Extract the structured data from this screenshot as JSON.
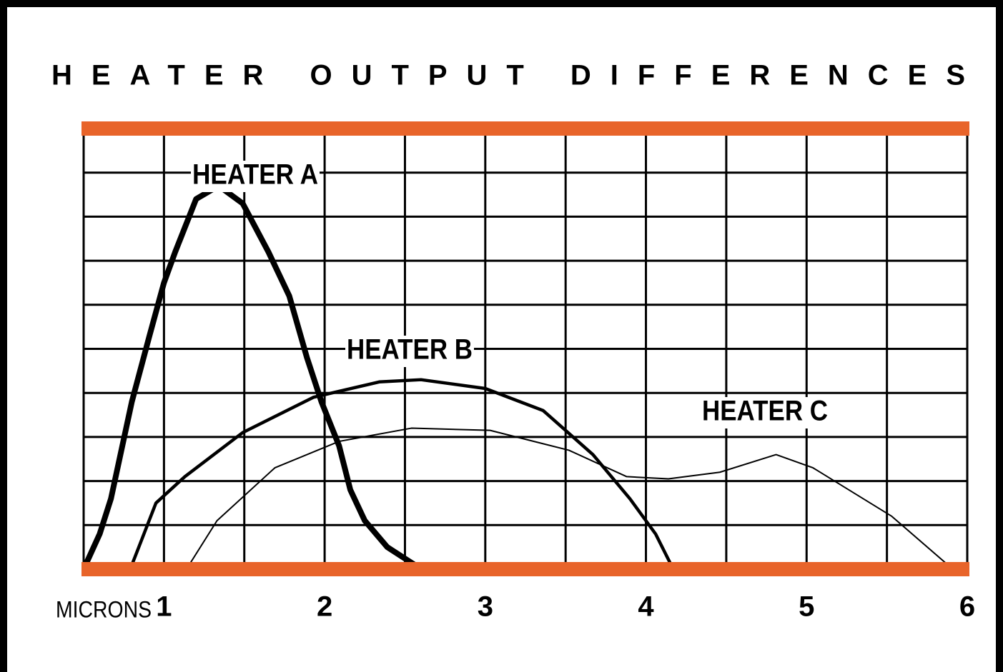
{
  "chart_data": {
    "type": "line",
    "title": "HEATER OUTPUT DIFFERENCES",
    "xlabel": "MICRONS",
    "xlim": [
      0.5,
      6
    ],
    "xticks": [
      1,
      2,
      3,
      4,
      5,
      6
    ],
    "xminor_ticks": [
      0.5,
      1.5,
      2.5,
      3.5,
      4.5,
      5.5
    ],
    "ylim": [
      0,
      10
    ],
    "yticks": [
      0,
      1,
      2,
      3,
      4,
      5,
      6,
      7,
      8,
      9,
      10
    ],
    "grid": true,
    "band_color": "#e8642a",
    "series": [
      {
        "name": "HEATER A",
        "color": "#000000",
        "line_width": 8,
        "x": [
          0.5,
          0.6,
          0.67,
          0.8,
          0.91,
          1.0,
          1.07,
          1.2,
          1.34,
          1.49,
          1.65,
          1.78,
          1.89,
          1.98,
          2.09,
          2.16,
          2.25,
          2.39,
          2.56,
          3.1
        ],
        "values": [
          0,
          0.8,
          1.6,
          3.8,
          5.3,
          6.5,
          7.2,
          8.4,
          8.7,
          8.3,
          7.2,
          6.2,
          4.8,
          3.8,
          2.8,
          1.8,
          1.1,
          0.5,
          0.1,
          0.05
        ]
      },
      {
        "name": "HEATER B",
        "color": "#000000",
        "line_width": 4.5,
        "x": [
          0.79,
          0.95,
          1.13,
          1.49,
          1.93,
          2.34,
          2.6,
          3.0,
          3.36,
          3.67,
          3.9,
          4.06,
          4.17
        ],
        "values": [
          0,
          1.5,
          2.1,
          3.1,
          3.9,
          4.25,
          4.3,
          4.1,
          3.6,
          2.6,
          1.6,
          0.8,
          0
        ]
      },
      {
        "name": "HEATER C",
        "color": "#000000",
        "line_width": 2,
        "x": [
          1.14,
          1.33,
          1.69,
          2.09,
          2.54,
          3.03,
          3.52,
          3.88,
          4.14,
          4.46,
          4.81,
          5.04,
          5.53,
          5.91
        ],
        "values": [
          0,
          1.1,
          2.3,
          2.9,
          3.2,
          3.15,
          2.7,
          2.1,
          2.05,
          2.2,
          2.6,
          2.3,
          1.2,
          0
        ]
      }
    ]
  }
}
